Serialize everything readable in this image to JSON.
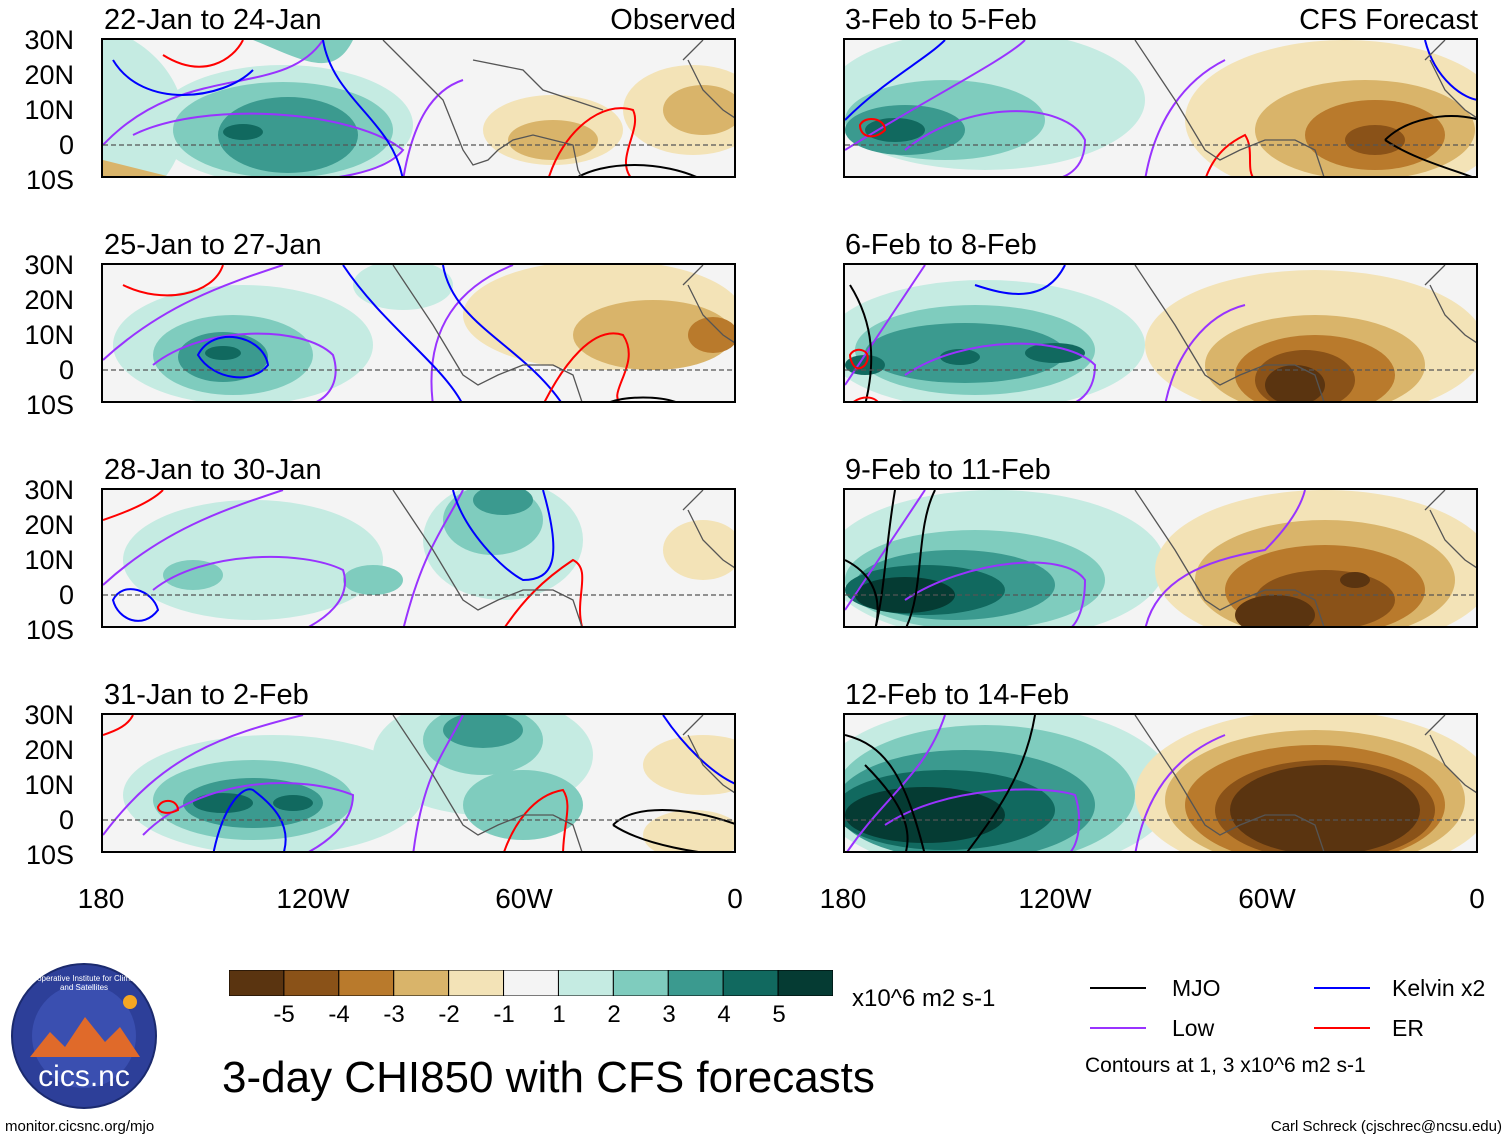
{
  "headers": {
    "left_tag": "Observed",
    "right_tag": "CFS Forecast"
  },
  "panels": [
    {
      "title": "22-Jan to 24-Jan",
      "column": "left",
      "row": 0
    },
    {
      "title": "25-Jan to 27-Jan",
      "column": "left",
      "row": 1
    },
    {
      "title": "28-Jan to 30-Jan",
      "column": "left",
      "row": 2
    },
    {
      "title": "31-Jan to 2-Feb",
      "column": "left",
      "row": 3
    },
    {
      "title": "3-Feb to 5-Feb",
      "column": "right",
      "row": 0
    },
    {
      "title": "6-Feb to 8-Feb",
      "column": "right",
      "row": 1
    },
    {
      "title": "9-Feb to 11-Feb",
      "column": "right",
      "row": 2
    },
    {
      "title": "12-Feb to 14-Feb",
      "column": "right",
      "row": 3
    }
  ],
  "lat_labels": [
    "30N",
    "20N",
    "10N",
    "0",
    "10S"
  ],
  "lon_labels": [
    "180",
    "120W",
    "60W",
    "0"
  ],
  "colorbar": {
    "labels": [
      "-5",
      "-4",
      "-3",
      "-2",
      "-1",
      "1",
      "2",
      "3",
      "4",
      "5"
    ],
    "colors": [
      "#5a3410",
      "#8a5218",
      "#b97a2c",
      "#d9b46a",
      "#f3e3b7",
      "#f4f4f4",
      "#c5ebe2",
      "#7fccbe",
      "#3b9a8f",
      "#11695f",
      "#053b33"
    ],
    "units": "x10^6 m2 s-1"
  },
  "legend": {
    "items": [
      {
        "label": "MJO",
        "color": "#000000"
      },
      {
        "label": "Kelvin x2",
        "color": "#0000ff"
      },
      {
        "label": "Low",
        "color": "#9933ff"
      },
      {
        "label": "ER",
        "color": "#ff0000"
      }
    ],
    "note": "Contours at 1, 3 x10^6 m2 s-1"
  },
  "logo": {
    "text": "cics.nc",
    "ring_text": "Cooperative Institute for Climate and Satellites"
  },
  "main_title": "3-day CHI850 with CFS forecasts",
  "footer": {
    "left": "monitor.cicsnc.org/mjo",
    "right": "Carl Schreck (cjschrec@ncsu.edu)"
  }
}
